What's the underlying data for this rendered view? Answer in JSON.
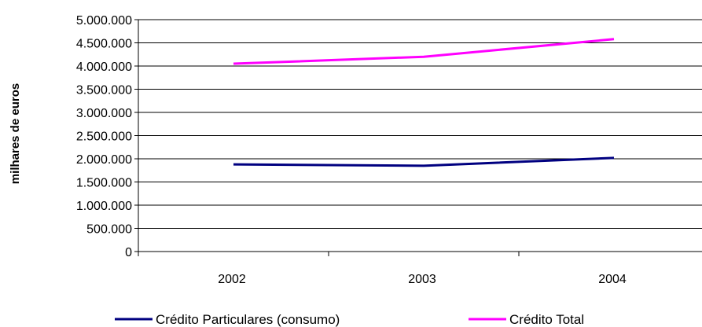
{
  "chart_data": {
    "type": "line",
    "title": "",
    "xlabel": "",
    "ylabel": "milhares de euros",
    "categories": [
      "2002",
      "2003",
      "2004"
    ],
    "ylim": [
      0,
      5000000
    ],
    "yticks": [
      "0",
      "500.000",
      "1.000.000",
      "1.500.000",
      "2.000.000",
      "2.500.000",
      "3.000.000",
      "3.500.000",
      "4.000.000",
      "4.500.000",
      "5.000.000"
    ],
    "grid": true,
    "legend_position": "bottom",
    "series": [
      {
        "name": "Crédito Particulares (consumo)",
        "values": [
          1880000,
          1850000,
          2020000
        ],
        "color": "#000080"
      },
      {
        "name": "Crédito Total",
        "values": [
          4050000,
          4200000,
          4580000
        ],
        "color": "#ff00ff"
      }
    ]
  }
}
